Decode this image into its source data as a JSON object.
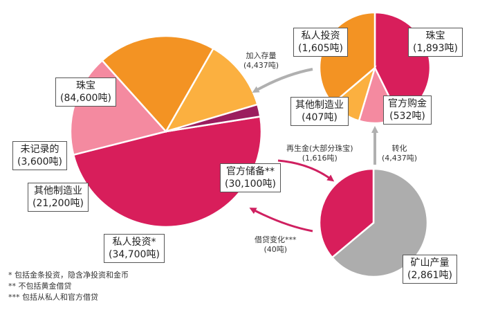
{
  "colors": {
    "jewellery": "#d81e5b",
    "private_investment": "#f39323",
    "other_fabrication": "#fbb040",
    "official_sector": "#f48aa0",
    "unrecorded": "#9b1d5e",
    "mine_production": "#adadad",
    "arrow": "#b0b0b0",
    "arrow_recycle": "#cf2060"
  },
  "chart_data": [
    {
      "type": "pie",
      "id": "above-ground-stocks",
      "slices": [
        {
          "label": "珠宝",
          "value": "(84,600吨)",
          "amount": 84600,
          "color_key": "jewellery"
        },
        {
          "label": "官方储备**",
          "value": "(30,100吨)",
          "amount": 30100,
          "color_key": "official_sector"
        },
        {
          "label": "私人投资*",
          "value": "(34,700吨)",
          "amount": 34700,
          "color_key": "private_investment"
        },
        {
          "label": "其他制造业",
          "value": "(21,200吨)",
          "amount": 21200,
          "color_key": "other_fabrication"
        },
        {
          "label": "未记录的",
          "value": "(3,600吨)",
          "amount": 3600,
          "color_key": "unrecorded"
        }
      ]
    },
    {
      "type": "pie",
      "id": "annual-demand",
      "slices": [
        {
          "label": "珠宝",
          "value": "(1,893吨)",
          "amount": 1893,
          "color_key": "jewellery"
        },
        {
          "label": "官方购金",
          "value": "(532吨)",
          "amount": 532,
          "color_key": "official_sector"
        },
        {
          "label": "其他制造业",
          "value": "(407吨)",
          "amount": 407,
          "color_key": "other_fabrication"
        },
        {
          "label": "私人投资",
          "value": "(1,605吨)",
          "amount": 1605,
          "color_key": "private_investment"
        }
      ]
    },
    {
      "type": "pie",
      "id": "annual-supply",
      "slices": [
        {
          "label": "矿山产量",
          "value": "(2,861吨)",
          "amount": 2861,
          "color_key": "mine_production"
        },
        {
          "label": "再生金",
          "value": "(1,616吨)",
          "amount": 1616,
          "color_key": "jewellery"
        }
      ]
    }
  ],
  "flows": {
    "stock_addition": {
      "label": "加入存量",
      "value": "(4,437吨)"
    },
    "transfer": {
      "label": "转化",
      "value": "(4,437吨)"
    },
    "recycling": {
      "label": "再生金(大部分珠宝)",
      "value": "(1,616吨)"
    },
    "lending": {
      "label": "借贷变化***",
      "value": "(40吨)"
    }
  },
  "notes": [
    "* 包括金条投资，隐含净投资和金币",
    "** 不包括黄金借贷",
    "*** 包括从私人和官方借贷"
  ]
}
